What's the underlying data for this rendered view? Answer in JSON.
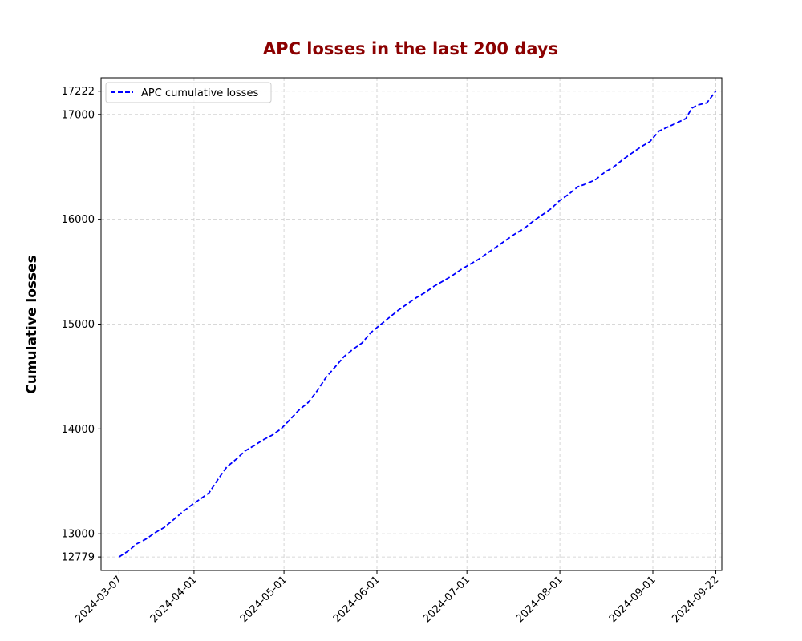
{
  "chart_data": {
    "type": "line",
    "title": "APC losses in the last 200 days",
    "xlabel": "",
    "ylabel": "Cumulative losses",
    "xlim": [
      "2024-03-01",
      "2024-09-24"
    ],
    "ylim": [
      12650,
      17350
    ],
    "x_ticks": [
      "2024-03-07",
      "2024-04-01",
      "2024-05-01",
      "2024-06-01",
      "2024-07-01",
      "2024-08-01",
      "2024-09-01",
      "2024-09-22"
    ],
    "y_ticks": [
      12779,
      13000,
      14000,
      15000,
      16000,
      17000,
      17222
    ],
    "grid": true,
    "legend_position": "top-left",
    "colors": {
      "title": "#8b0000",
      "line": "#0000ff",
      "grid": "#cccccc"
    },
    "series": [
      {
        "name": "APC cumulative losses",
        "style": "dashed",
        "points": [
          [
            "2024-03-07",
            12779
          ],
          [
            "2024-03-10",
            12835
          ],
          [
            "2024-03-13",
            12905
          ],
          [
            "2024-03-16",
            12950
          ],
          [
            "2024-03-19",
            13010
          ],
          [
            "2024-03-22",
            13060
          ],
          [
            "2024-03-25",
            13130
          ],
          [
            "2024-03-28",
            13205
          ],
          [
            "2024-03-31",
            13270
          ],
          [
            "2024-04-03",
            13330
          ],
          [
            "2024-04-06",
            13390
          ],
          [
            "2024-04-09",
            13520
          ],
          [
            "2024-04-12",
            13640
          ],
          [
            "2024-04-15",
            13710
          ],
          [
            "2024-04-18",
            13790
          ],
          [
            "2024-04-21",
            13840
          ],
          [
            "2024-04-24",
            13895
          ],
          [
            "2024-04-27",
            13940
          ],
          [
            "2024-04-30",
            14000
          ],
          [
            "2024-05-03",
            14090
          ],
          [
            "2024-05-06",
            14180
          ],
          [
            "2024-05-09",
            14250
          ],
          [
            "2024-05-12",
            14360
          ],
          [
            "2024-05-15",
            14490
          ],
          [
            "2024-05-18",
            14590
          ],
          [
            "2024-05-21",
            14690
          ],
          [
            "2024-05-24",
            14760
          ],
          [
            "2024-05-27",
            14820
          ],
          [
            "2024-05-30",
            14920
          ],
          [
            "2024-06-02",
            14990
          ],
          [
            "2024-06-05",
            15060
          ],
          [
            "2024-06-08",
            15130
          ],
          [
            "2024-06-11",
            15190
          ],
          [
            "2024-06-14",
            15250
          ],
          [
            "2024-06-17",
            15300
          ],
          [
            "2024-06-20",
            15360
          ],
          [
            "2024-06-23",
            15410
          ],
          [
            "2024-06-26",
            15460
          ],
          [
            "2024-06-29",
            15520
          ],
          [
            "2024-07-02",
            15570
          ],
          [
            "2024-07-05",
            15620
          ],
          [
            "2024-07-08",
            15680
          ],
          [
            "2024-07-11",
            15740
          ],
          [
            "2024-07-14",
            15800
          ],
          [
            "2024-07-17",
            15860
          ],
          [
            "2024-07-20",
            15910
          ],
          [
            "2024-07-23",
            15980
          ],
          [
            "2024-07-26",
            16040
          ],
          [
            "2024-07-29",
            16100
          ],
          [
            "2024-08-01",
            16180
          ],
          [
            "2024-08-04",
            16240
          ],
          [
            "2024-08-07",
            16310
          ],
          [
            "2024-08-10",
            16340
          ],
          [
            "2024-08-13",
            16380
          ],
          [
            "2024-08-16",
            16450
          ],
          [
            "2024-08-19",
            16500
          ],
          [
            "2024-08-22",
            16570
          ],
          [
            "2024-08-25",
            16630
          ],
          [
            "2024-08-28",
            16690
          ],
          [
            "2024-08-31",
            16740
          ],
          [
            "2024-09-03",
            16840
          ],
          [
            "2024-09-06",
            16880
          ],
          [
            "2024-09-09",
            16920
          ],
          [
            "2024-09-12",
            16960
          ],
          [
            "2024-09-14",
            17060
          ],
          [
            "2024-09-16",
            17090
          ],
          [
            "2024-09-19",
            17110
          ],
          [
            "2024-09-22",
            17222
          ]
        ]
      }
    ]
  }
}
